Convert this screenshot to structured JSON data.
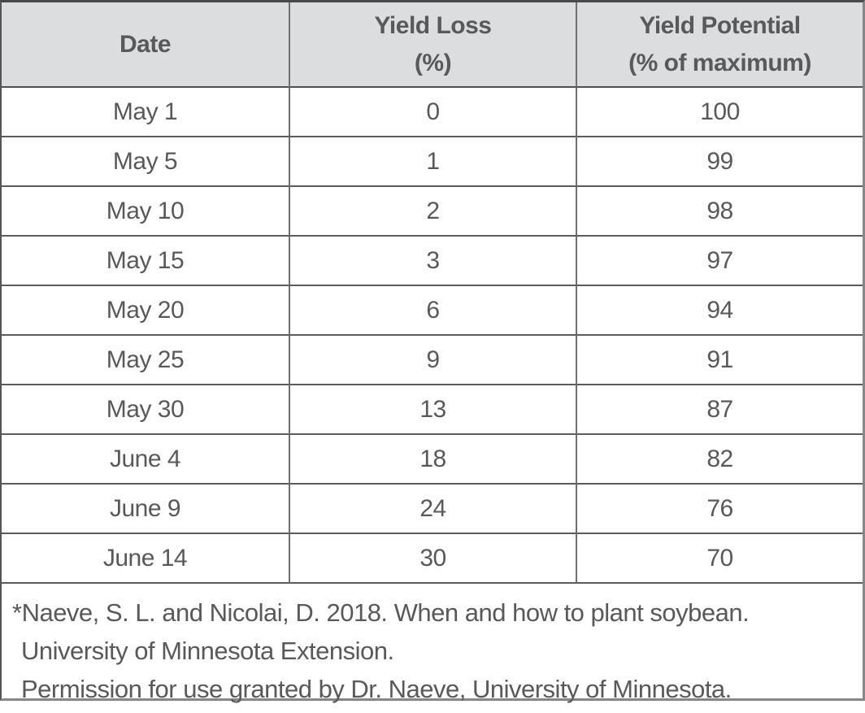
{
  "table": {
    "headers": [
      {
        "line1": "Date",
        "line2": ""
      },
      {
        "line1": "Yield Loss",
        "line2": "(%)"
      },
      {
        "line1": "Yield Potential",
        "line2": "(% of maximum)"
      }
    ],
    "rows": [
      {
        "date": "May 1",
        "yield_loss": "0",
        "yield_potential": "100"
      },
      {
        "date": "May 5",
        "yield_loss": "1",
        "yield_potential": "99"
      },
      {
        "date": "May 10",
        "yield_loss": "2",
        "yield_potential": "98"
      },
      {
        "date": "May 15",
        "yield_loss": "3",
        "yield_potential": "97"
      },
      {
        "date": "May 20",
        "yield_loss": "6",
        "yield_potential": "94"
      },
      {
        "date": "May 25",
        "yield_loss": "9",
        "yield_potential": "91"
      },
      {
        "date": "May 30",
        "yield_loss": "13",
        "yield_potential": "87"
      },
      {
        "date": "June 4",
        "yield_loss": "18",
        "yield_potential": "82"
      },
      {
        "date": "June 9",
        "yield_loss": "24",
        "yield_potential": "76"
      },
      {
        "date": "June 14",
        "yield_loss": "30",
        "yield_potential": "70"
      }
    ],
    "footnote_lines": [
      "*Naeve, S. L. and Nicolai, D. 2018. When and how to plant soybean.",
      "University of Minnesota Extension.",
      "Permission for use granted by Dr. Naeve, University of Minnesota."
    ]
  },
  "colors": {
    "header_background": "#dcddde",
    "text": "#58595b",
    "border_dark": "#48494b",
    "border_light": "#85878a"
  }
}
